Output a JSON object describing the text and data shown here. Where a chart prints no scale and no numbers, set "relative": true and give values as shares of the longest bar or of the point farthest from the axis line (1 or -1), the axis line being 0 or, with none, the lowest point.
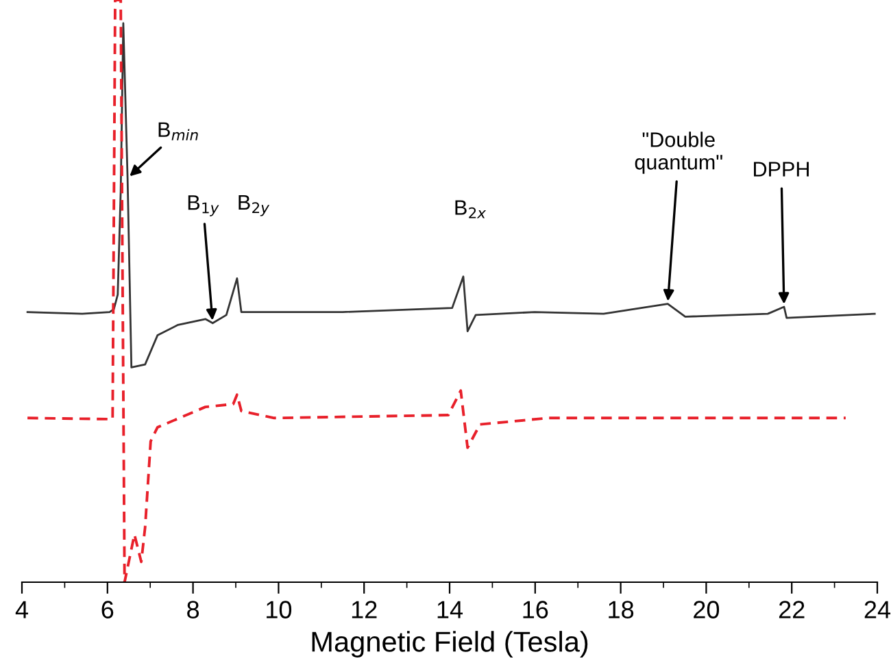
{
  "chart_data": {
    "type": "line",
    "relative": true,
    "xlabel": "Magnetic Field (Tesla)",
    "xlim": [
      4,
      24
    ],
    "xticks": [
      4,
      6,
      8,
      10,
      12,
      14,
      16,
      18,
      20,
      22,
      24
    ],
    "series": [
      {
        "color": "#333333",
        "line_style": "solid",
        "x": [
          4.13,
          5.41,
          6.05,
          6.15,
          6.24,
          6.31,
          6.37,
          6.47,
          6.56,
          6.88,
          7.17,
          7.65,
          8.29,
          8.46,
          8.78,
          9.03,
          9.13,
          11.5,
          14.06,
          14.32,
          14.42,
          14.61,
          15.99,
          17.6,
          19.1,
          19.51,
          21.44,
          21.82,
          21.88,
          23.94
        ],
        "values": [
          0.464,
          0.461,
          0.464,
          0.469,
          0.494,
          0.671,
          0.96,
          0.694,
          0.369,
          0.374,
          0.424,
          0.442,
          0.452,
          0.445,
          0.459,
          0.522,
          0.464,
          0.464,
          0.471,
          0.525,
          0.431,
          0.459,
          0.464,
          0.461,
          0.478,
          0.456,
          0.461,
          0.473,
          0.454,
          0.461
        ]
      },
      {
        "color": "#e8202a",
        "line_style": "dashed",
        "x": [
          4.13,
          6.12,
          6.18,
          6.31,
          6.4,
          6.63,
          6.79,
          6.88,
          7.01,
          7.17,
          8.29,
          8.94,
          9.03,
          9.13,
          9.9,
          13.97,
          14.26,
          14.42,
          14.71,
          16.31,
          23.26
        ],
        "values": [
          0.282,
          0.28,
          1.0,
          1.0,
          0.0,
          0.082,
          0.035,
          0.094,
          0.242,
          0.266,
          0.301,
          0.306,
          0.322,
          0.294,
          0.282,
          0.287,
          0.329,
          0.231,
          0.271,
          0.282,
          0.282
        ]
      }
    ],
    "annotations": [
      {
        "text": "B$_{min}$",
        "x": 6.47,
        "y": 0.694
      },
      {
        "text": "B$_{1y}$",
        "x": 8.46,
        "y": 0.445
      },
      {
        "text": "B$_{2y}$",
        "x": 9.03,
        "y": 0.522
      },
      {
        "text": "B$_{2x}$",
        "x": 14.32,
        "y": 0.525
      },
      {
        "text": "\"Double\nquantum\"",
        "x": 19.1,
        "y": 0.478
      },
      {
        "text": "DPPH",
        "x": 21.82,
        "y": 0.473
      }
    ]
  }
}
